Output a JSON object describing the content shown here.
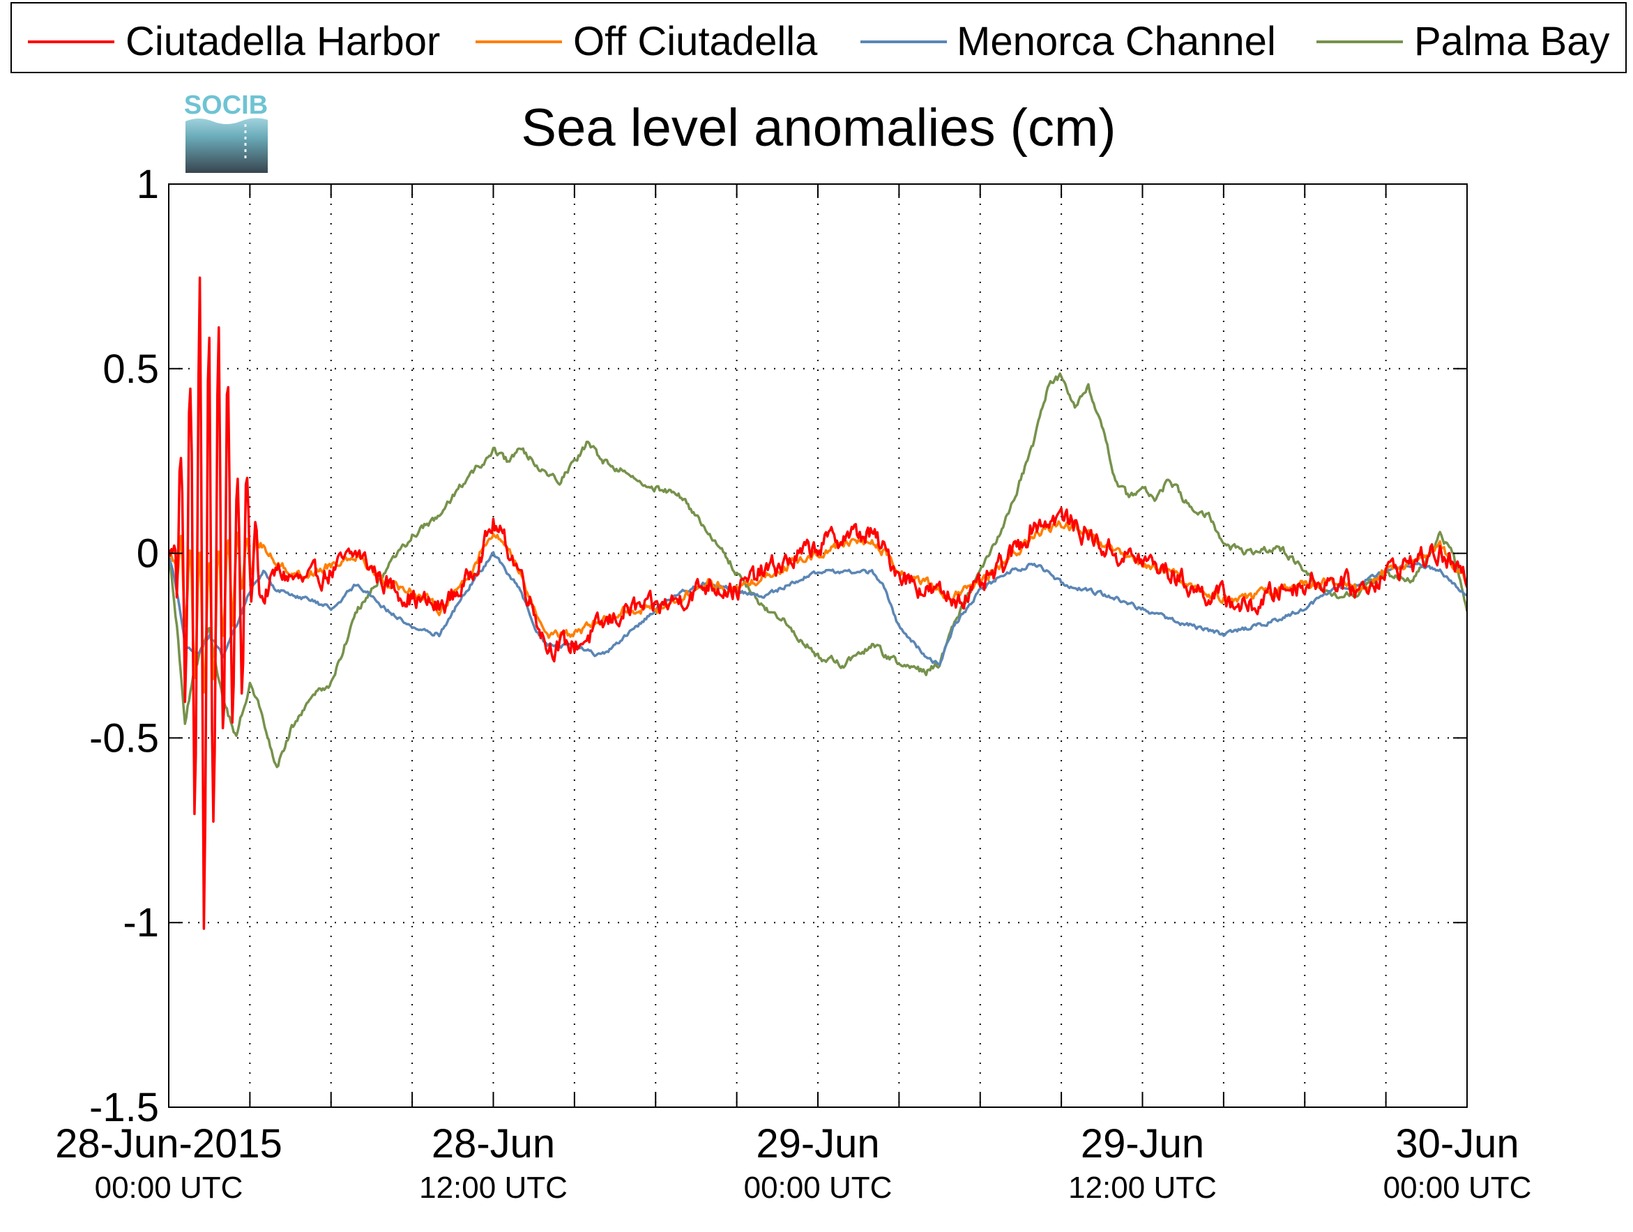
{
  "logo": {
    "text": "SOCIB"
  },
  "chart_data": {
    "type": "line",
    "title": "Sea level anomalies (cm)",
    "xlabel": "",
    "ylabel": "",
    "ylim": [
      -1.5,
      1
    ],
    "xlim_hours": [
      0,
      48
    ],
    "grid": true,
    "legend_position": "top",
    "y_ticks": [
      {
        "value": 1,
        "label": "1"
      },
      {
        "value": 0.5,
        "label": "0.5"
      },
      {
        "value": 0,
        "label": "0"
      },
      {
        "value": -0.5,
        "label": "-0.5"
      },
      {
        "value": -1,
        "label": "-1"
      },
      {
        "value": -1.5,
        "label": "-1.5"
      }
    ],
    "x_ticks": [
      {
        "hour": 0,
        "date_label": "28-Jun-2015",
        "time_label": "00:00 UTC"
      },
      {
        "hour": 12,
        "date_label": "28-Jun",
        "time_label": "12:00 UTC"
      },
      {
        "hour": 24,
        "date_label": "29-Jun",
        "time_label": "00:00 UTC"
      },
      {
        "hour": 36,
        "date_label": "29-Jun",
        "time_label": "12:00 UTC"
      },
      {
        "hour": 48,
        "date_label": "30-Jun",
        "time_label": "00:00 UTC"
      }
    ],
    "minor_x_ticks_hours": [
      3,
      6,
      9,
      15,
      18,
      21,
      27,
      30,
      33,
      39,
      42,
      45
    ],
    "series": [
      {
        "name": "Ciutadella Harbor",
        "color": "#ff0000",
        "noise": 0.06,
        "osc": [
          {
            "hours": [
              0.3,
              3.3
            ],
            "amp": [
              0.2,
              0.95,
              0.1
            ],
            "period": 0.35
          }
        ],
        "values": [
          [
            0,
            0
          ],
          [
            0.5,
            0.02
          ],
          [
            1,
            -0.05
          ],
          [
            1.5,
            -0.2
          ],
          [
            2,
            0.05
          ],
          [
            2.5,
            -0.1
          ],
          [
            3,
            0.03
          ],
          [
            3.5,
            -0.12
          ],
          [
            4,
            -0.05
          ],
          [
            5,
            -0.08
          ],
          [
            6,
            -0.05
          ],
          [
            7,
            0
          ],
          [
            8,
            -0.08
          ],
          [
            9,
            -0.12
          ],
          [
            10,
            -0.15
          ],
          [
            11,
            -0.08
          ],
          [
            11.5,
            0
          ],
          [
            12,
            0.08
          ],
          [
            12.5,
            0.02
          ],
          [
            13,
            -0.05
          ],
          [
            13.5,
            -0.15
          ],
          [
            14,
            -0.25
          ],
          [
            15,
            -0.25
          ],
          [
            16,
            -0.2
          ],
          [
            17,
            -0.15
          ],
          [
            18,
            -0.15
          ],
          [
            19,
            -0.12
          ],
          [
            20,
            -0.08
          ],
          [
            21,
            -0.1
          ],
          [
            22,
            -0.05
          ],
          [
            23,
            -0.02
          ],
          [
            24,
            0.02
          ],
          [
            25,
            0.05
          ],
          [
            26,
            0.05
          ],
          [
            26.5,
            0
          ],
          [
            27,
            -0.05
          ],
          [
            28,
            -0.1
          ],
          [
            29,
            -0.12
          ],
          [
            30,
            -0.1
          ],
          [
            31,
            -0.02
          ],
          [
            32,
            0.08
          ],
          [
            33,
            0.1
          ],
          [
            34,
            0.05
          ],
          [
            34.5,
            0.02
          ],
          [
            35,
            0
          ],
          [
            36,
            -0.02
          ],
          [
            37,
            -0.05
          ],
          [
            38,
            -0.1
          ],
          [
            39,
            -0.12
          ],
          [
            40,
            -0.15
          ],
          [
            41,
            -0.1
          ],
          [
            42,
            -0.08
          ],
          [
            43,
            -0.07
          ],
          [
            44,
            -0.1
          ],
          [
            45,
            -0.05
          ],
          [
            46,
            -0.02
          ],
          [
            47,
            0
          ],
          [
            48,
            -0.08
          ]
        ]
      },
      {
        "name": "Off Ciutadella",
        "color": "#ff7f00",
        "noise": 0.025,
        "osc": [
          {
            "hours": [
              0.3,
              3.3
            ],
            "amp": [
              0.08,
              0.25,
              0.04
            ],
            "period": 0.35
          }
        ],
        "values": [
          [
            0,
            0
          ],
          [
            0.5,
            -0.05
          ],
          [
            1,
            -0.15
          ],
          [
            1.5,
            -0.2
          ],
          [
            2,
            -0.1
          ],
          [
            2.5,
            -0.05
          ],
          [
            3,
            0
          ],
          [
            3.5,
            0.02
          ],
          [
            4,
            -0.03
          ],
          [
            5,
            -0.06
          ],
          [
            6,
            -0.03
          ],
          [
            7,
            0
          ],
          [
            8,
            -0.08
          ],
          [
            9,
            -0.1
          ],
          [
            10,
            -0.15
          ],
          [
            11,
            -0.07
          ],
          [
            11.5,
            0
          ],
          [
            12,
            0.05
          ],
          [
            12.5,
            0.02
          ],
          [
            13,
            -0.05
          ],
          [
            13.5,
            -0.15
          ],
          [
            14,
            -0.22
          ],
          [
            15,
            -0.22
          ],
          [
            16,
            -0.18
          ],
          [
            17,
            -0.15
          ],
          [
            18,
            -0.15
          ],
          [
            19,
            -0.12
          ],
          [
            20,
            -0.08
          ],
          [
            21,
            -0.1
          ],
          [
            22,
            -0.06
          ],
          [
            23,
            -0.03
          ],
          [
            24,
            0
          ],
          [
            25,
            0.03
          ],
          [
            26,
            0.03
          ],
          [
            26.5,
            0
          ],
          [
            27,
            -0.05
          ],
          [
            28,
            -0.08
          ],
          [
            29,
            -0.12
          ],
          [
            30,
            -0.08
          ],
          [
            31,
            -0.02
          ],
          [
            32,
            0.05
          ],
          [
            33,
            0.08
          ],
          [
            34,
            0.05
          ],
          [
            34.5,
            0.02
          ],
          [
            35,
            0
          ],
          [
            36,
            -0.03
          ],
          [
            37,
            -0.05
          ],
          [
            38,
            -0.1
          ],
          [
            39,
            -0.12
          ],
          [
            40,
            -0.12
          ],
          [
            41,
            -0.1
          ],
          [
            42,
            -0.08
          ],
          [
            43,
            -0.08
          ],
          [
            44,
            -0.1
          ],
          [
            45,
            -0.05
          ],
          [
            46,
            -0.03
          ],
          [
            47,
            0.02
          ],
          [
            48,
            -0.08
          ]
        ]
      },
      {
        "name": "Menorca Channel",
        "color": "#5b86b5",
        "noise": 0.012,
        "osc": [],
        "values": [
          [
            0,
            0
          ],
          [
            0.3,
            -0.1
          ],
          [
            0.6,
            -0.25
          ],
          [
            1,
            -0.28
          ],
          [
            1.5,
            -0.22
          ],
          [
            2,
            -0.28
          ],
          [
            2.5,
            -0.2
          ],
          [
            3,
            -0.1
          ],
          [
            3.5,
            -0.05
          ],
          [
            4,
            -0.1
          ],
          [
            5,
            -0.12
          ],
          [
            6,
            -0.15
          ],
          [
            7,
            -0.08
          ],
          [
            8,
            -0.15
          ],
          [
            9,
            -0.2
          ],
          [
            10,
            -0.22
          ],
          [
            11,
            -0.1
          ],
          [
            11.5,
            -0.05
          ],
          [
            12,
            0
          ],
          [
            12.5,
            -0.05
          ],
          [
            13,
            -0.1
          ],
          [
            13.5,
            -0.2
          ],
          [
            14,
            -0.25
          ],
          [
            15,
            -0.25
          ],
          [
            16,
            -0.28
          ],
          [
            17,
            -0.22
          ],
          [
            18,
            -0.15
          ],
          [
            19,
            -0.1
          ],
          [
            20,
            -0.08
          ],
          [
            21,
            -0.1
          ],
          [
            22,
            -0.12
          ],
          [
            23,
            -0.08
          ],
          [
            24,
            -0.05
          ],
          [
            25,
            -0.05
          ],
          [
            26,
            -0.05
          ],
          [
            26.5,
            -0.1
          ],
          [
            27,
            -0.2
          ],
          [
            28,
            -0.28
          ],
          [
            28.5,
            -0.3
          ],
          [
            29,
            -0.2
          ],
          [
            30,
            -0.1
          ],
          [
            31,
            -0.05
          ],
          [
            32,
            -0.03
          ],
          [
            32.5,
            -0.05
          ],
          [
            33,
            -0.08
          ],
          [
            34,
            -0.1
          ],
          [
            35,
            -0.12
          ],
          [
            36,
            -0.15
          ],
          [
            37,
            -0.18
          ],
          [
            38,
            -0.2
          ],
          [
            39,
            -0.22
          ],
          [
            40,
            -0.2
          ],
          [
            41,
            -0.18
          ],
          [
            42,
            -0.15
          ],
          [
            43,
            -0.1
          ],
          [
            44,
            -0.08
          ],
          [
            45,
            -0.05
          ],
          [
            46,
            -0.03
          ],
          [
            47,
            -0.05
          ],
          [
            48,
            -0.12
          ]
        ]
      },
      {
        "name": "Palma Bay",
        "color": "#76924b",
        "noise": 0.02,
        "osc": [],
        "values": [
          [
            0,
            0
          ],
          [
            0.3,
            -0.2
          ],
          [
            0.6,
            -0.45
          ],
          [
            1,
            -0.3
          ],
          [
            1.5,
            -0.2
          ],
          [
            2,
            -0.4
          ],
          [
            2.5,
            -0.5
          ],
          [
            3,
            -0.35
          ],
          [
            3.5,
            -0.45
          ],
          [
            4,
            -0.58
          ],
          [
            4.5,
            -0.48
          ],
          [
            5,
            -0.42
          ],
          [
            5.5,
            -0.38
          ],
          [
            6,
            -0.35
          ],
          [
            6.5,
            -0.25
          ],
          [
            7,
            -0.15
          ],
          [
            8,
            -0.05
          ],
          [
            9,
            0.05
          ],
          [
            10,
            0.1
          ],
          [
            11,
            0.2
          ],
          [
            12,
            0.28
          ],
          [
            12.5,
            0.25
          ],
          [
            13,
            0.28
          ],
          [
            13.5,
            0.25
          ],
          [
            14,
            0.22
          ],
          [
            14.5,
            0.2
          ],
          [
            15,
            0.25
          ],
          [
            15.5,
            0.3
          ],
          [
            16,
            0.25
          ],
          [
            17,
            0.22
          ],
          [
            18,
            0.18
          ],
          [
            19,
            0.15
          ],
          [
            20,
            0.05
          ],
          [
            21,
            -0.05
          ],
          [
            22,
            -0.15
          ],
          [
            23,
            -0.2
          ],
          [
            24,
            -0.28
          ],
          [
            25,
            -0.3
          ],
          [
            26,
            -0.25
          ],
          [
            27,
            -0.3
          ],
          [
            28,
            -0.32
          ],
          [
            28.5,
            -0.3
          ],
          [
            29,
            -0.2
          ],
          [
            30,
            -0.05
          ],
          [
            31,
            0.1
          ],
          [
            31.5,
            0.2
          ],
          [
            32,
            0.3
          ],
          [
            32.5,
            0.45
          ],
          [
            33,
            0.48
          ],
          [
            33.5,
            0.4
          ],
          [
            34,
            0.45
          ],
          [
            34.5,
            0.35
          ],
          [
            35,
            0.2
          ],
          [
            35.5,
            0.15
          ],
          [
            36,
            0.18
          ],
          [
            36.5,
            0.15
          ],
          [
            37,
            0.2
          ],
          [
            37.5,
            0.15
          ],
          [
            38,
            0.12
          ],
          [
            38.5,
            0.1
          ],
          [
            39,
            0.02
          ],
          [
            40,
            0
          ],
          [
            41,
            0.02
          ],
          [
            42,
            -0.05
          ],
          [
            43,
            -0.12
          ],
          [
            44,
            -0.1
          ],
          [
            45,
            -0.05
          ],
          [
            46,
            -0.08
          ],
          [
            47,
            0.05
          ],
          [
            47.5,
            0
          ],
          [
            48,
            -0.15
          ]
        ]
      }
    ]
  }
}
